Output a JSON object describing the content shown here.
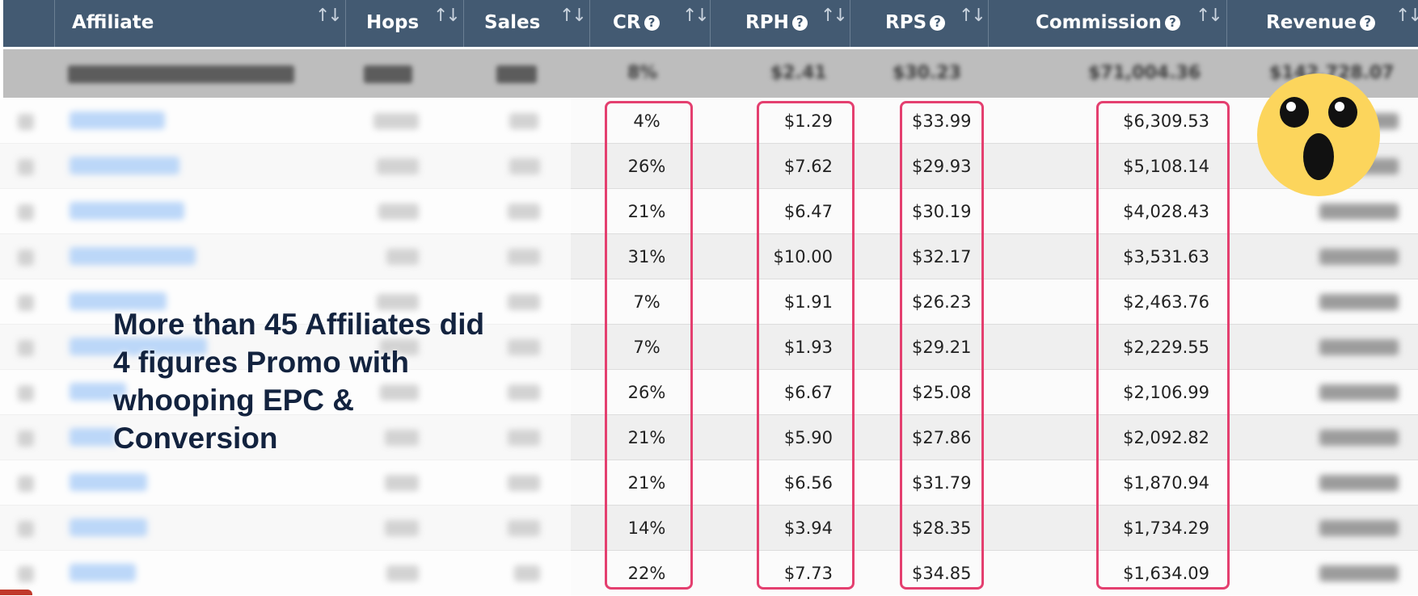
{
  "header": {
    "columns": [
      {
        "label": "Affiliate",
        "help": false
      },
      {
        "label": "Hops",
        "help": false
      },
      {
        "label": "Sales",
        "help": false
      },
      {
        "label": "CR",
        "help": true
      },
      {
        "label": "RPH",
        "help": true
      },
      {
        "label": "RPS",
        "help": true
      },
      {
        "label": "Commission",
        "help": true
      },
      {
        "label": "Revenue",
        "help": true
      }
    ],
    "sort_glyph": "↑↓",
    "help_glyph": "?"
  },
  "total": {
    "cr": "8%",
    "rph": "$2.41",
    "rps": "$30.23",
    "commission": "$71,004.36",
    "revenue": "$142,728.07"
  },
  "rows": [
    {
      "cr": "4%",
      "rph": "$1.29",
      "rps": "$33.99",
      "commission": "$6,309.53"
    },
    {
      "cr": "26%",
      "rph": "$7.62",
      "rps": "$29.93",
      "commission": "$5,108.14"
    },
    {
      "cr": "21%",
      "rph": "$6.47",
      "rps": "$30.19",
      "commission": "$4,028.43"
    },
    {
      "cr": "31%",
      "rph": "$10.00",
      "rps": "$32.17",
      "commission": "$3,531.63"
    },
    {
      "cr": "7%",
      "rph": "$1.91",
      "rps": "$26.23",
      "commission": "$2,463.76"
    },
    {
      "cr": "7%",
      "rph": "$1.93",
      "rps": "$29.21",
      "commission": "$2,229.55"
    },
    {
      "cr": "26%",
      "rph": "$6.67",
      "rps": "$25.08",
      "commission": "$2,106.99"
    },
    {
      "cr": "21%",
      "rph": "$5.90",
      "rps": "$27.86",
      "commission": "$2,092.82"
    },
    {
      "cr": "21%",
      "rph": "$6.56",
      "rps": "$31.79",
      "commission": "$1,870.94"
    },
    {
      "cr": "14%",
      "rph": "$3.94",
      "rps": "$28.35",
      "commission": "$1,734.29"
    },
    {
      "cr": "22%",
      "rph": "$7.73",
      "rps": "$34.85",
      "commission": "$1,634.09"
    }
  ],
  "overlay": {
    "line1": "More than 45 Affiliates did",
    "line2": "4 figures Promo with",
    "line3": "whooping EPC &",
    "line4": "Conversion"
  },
  "colors": {
    "header_bg": "#435a72",
    "highlight": "#e43f6f",
    "overlay_text": "#13233f",
    "emoji_face": "#fcd55c"
  },
  "icons": {
    "sort": "sort-arrows-icon",
    "help": "question-circle-icon",
    "reaction": "surprised-face-emoji"
  }
}
